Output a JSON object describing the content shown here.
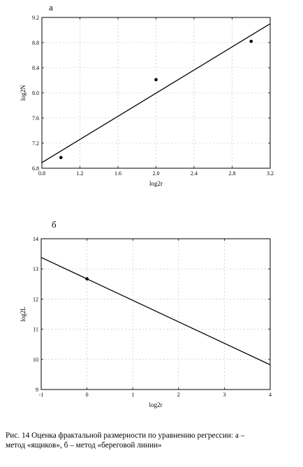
{
  "chart_data": [
    {
      "type": "scatter",
      "panel_letter": "а",
      "xlabel": "log2r",
      "ylabel": "log2N",
      "xlim": [
        0.8,
        3.2
      ],
      "ylim": [
        6.8,
        9.2
      ],
      "xticks": [
        "0.8",
        "1.2",
        "1.6",
        "2.0",
        "2.4",
        "2.8",
        "3.2"
      ],
      "yticks": [
        "6.8",
        "7.2",
        "7.6",
        "8.0",
        "8.4",
        "8.8",
        "9.2"
      ],
      "grid": true,
      "points": {
        "x": [
          1.0,
          2.0,
          3.0
        ],
        "y": [
          6.97,
          8.21,
          8.82
        ]
      },
      "regression_line": {
        "x": [
          0.8,
          3.2
        ],
        "y": [
          6.89,
          9.1
        ]
      }
    },
    {
      "type": "scatter",
      "panel_letter": "б",
      "xlabel": "log2r",
      "ylabel": "log2L",
      "xlim": [
        -1,
        4
      ],
      "ylim": [
        9,
        14
      ],
      "xticks": [
        "-1",
        "0",
        "1",
        "2",
        "3",
        "4"
      ],
      "yticks": [
        "9",
        "10",
        "11",
        "12",
        "13",
        "14"
      ],
      "grid": true,
      "points": {
        "x": [
          0
        ],
        "y": [
          12.67
        ]
      },
      "regression_line": {
        "x": [
          -1,
          4
        ],
        "y": [
          13.38,
          9.82
        ]
      }
    }
  ],
  "caption": {
    "line1": "Рис. 14  Оценка фрактальной размерности по уравнению регрессии:  а –",
    "line2": "метод «ящиков», б – метод «береговой линии»"
  }
}
